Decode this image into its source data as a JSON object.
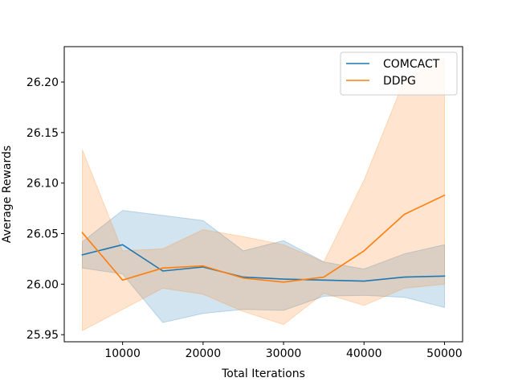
{
  "chart_data": {
    "type": "line",
    "title": "",
    "xlabel": "Total Iterations",
    "ylabel": "Average Rewards",
    "xlim": [
      2750,
      52250
    ],
    "ylim": [
      25.943,
      26.235
    ],
    "xticks": [
      10000,
      20000,
      30000,
      40000,
      50000
    ],
    "xtick_labels": [
      "10000",
      "20000",
      "30000",
      "40000",
      "50000"
    ],
    "yticks": [
      25.95,
      26.0,
      26.05,
      26.1,
      26.15,
      26.2
    ],
    "ytick_labels": [
      "25.95",
      "26.00",
      "26.05",
      "26.10",
      "26.15",
      "26.20"
    ],
    "legend_position": "top-right",
    "grid": false,
    "x": [
      5000,
      10000,
      15000,
      20000,
      25000,
      30000,
      35000,
      40000,
      45000,
      50000
    ],
    "series": [
      {
        "name": "COMCACT",
        "color": "#1f77b4",
        "values": [
          26.029,
          26.039,
          26.013,
          26.017,
          26.007,
          26.005,
          26.004,
          26.003,
          26.007,
          26.008
        ],
        "upper": [
          26.042,
          26.073,
          26.068,
          26.063,
          26.033,
          26.043,
          26.022,
          26.015,
          26.03,
          26.039
        ],
        "lower": [
          26.016,
          26.01,
          25.962,
          25.971,
          25.975,
          25.974,
          25.988,
          25.989,
          25.987,
          25.977
        ]
      },
      {
        "name": "DDPG",
        "color": "#ff7f0e",
        "values": [
          26.051,
          26.004,
          26.016,
          26.018,
          26.006,
          26.002,
          26.007,
          26.033,
          26.069,
          26.088
        ],
        "upper": [
          26.133,
          26.033,
          26.035,
          26.054,
          26.047,
          26.039,
          26.022,
          26.103,
          26.202,
          26.223
        ],
        "lower": [
          25.954,
          25.975,
          25.996,
          25.99,
          25.973,
          25.96,
          25.991,
          25.979,
          25.996,
          26.0
        ]
      }
    ]
  }
}
